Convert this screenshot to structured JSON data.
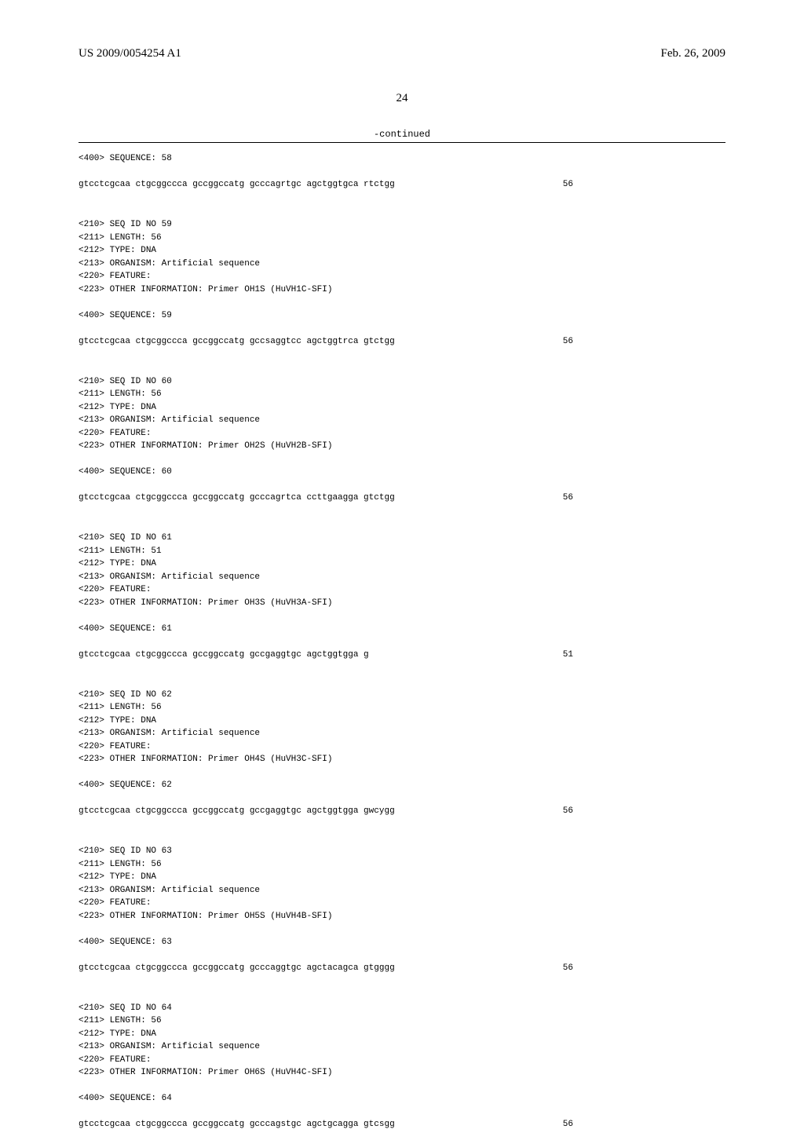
{
  "header": {
    "pub_number": "US 2009/0054254 A1",
    "pub_date": "Feb. 26, 2009"
  },
  "page_number": "24",
  "continued_label": "-continued",
  "entries": [
    {
      "preamble": "<400> SEQUENCE: 58",
      "sequence": "gtcctcgcaa ctgcggccca gccggccatg gcccagrtgc agctggtgca rtctgg",
      "length": "56"
    },
    {
      "meta": [
        "<210> SEQ ID NO 59",
        "<211> LENGTH: 56",
        "<212> TYPE: DNA",
        "<213> ORGANISM: Artificial sequence",
        "<220> FEATURE:",
        "<223> OTHER INFORMATION: Primer OH1S (HuVH1C-SFI)"
      ],
      "preamble": "<400> SEQUENCE: 59",
      "sequence": "gtcctcgcaa ctgcggccca gccggccatg gccsaggtcc agctggtrca gtctgg",
      "length": "56"
    },
    {
      "meta": [
        "<210> SEQ ID NO 60",
        "<211> LENGTH: 56",
        "<212> TYPE: DNA",
        "<213> ORGANISM: Artificial sequence",
        "<220> FEATURE:",
        "<223> OTHER INFORMATION: Primer OH2S (HuVH2B-SFI)"
      ],
      "preamble": "<400> SEQUENCE: 60",
      "sequence": "gtcctcgcaa ctgcggccca gccggccatg gcccagrtca ccttgaagga gtctgg",
      "length": "56"
    },
    {
      "meta": [
        "<210> SEQ ID NO 61",
        "<211> LENGTH: 51",
        "<212> TYPE: DNA",
        "<213> ORGANISM: Artificial sequence",
        "<220> FEATURE:",
        "<223> OTHER INFORMATION: Primer OH3S (HuVH3A-SFI)"
      ],
      "preamble": "<400> SEQUENCE: 61",
      "sequence": "gtcctcgcaa ctgcggccca gccggccatg gccgaggtgc agctggtgga g",
      "length": "51"
    },
    {
      "meta": [
        "<210> SEQ ID NO 62",
        "<211> LENGTH: 56",
        "<212> TYPE: DNA",
        "<213> ORGANISM: Artificial sequence",
        "<220> FEATURE:",
        "<223> OTHER INFORMATION: Primer OH4S (HuVH3C-SFI)"
      ],
      "preamble": "<400> SEQUENCE: 62",
      "sequence": "gtcctcgcaa ctgcggccca gccggccatg gccgaggtgc agctggtgga gwcygg",
      "length": "56"
    },
    {
      "meta": [
        "<210> SEQ ID NO 63",
        "<211> LENGTH: 56",
        "<212> TYPE: DNA",
        "<213> ORGANISM: Artificial sequence",
        "<220> FEATURE:",
        "<223> OTHER INFORMATION: Primer OH5S (HuVH4B-SFI)"
      ],
      "preamble": "<400> SEQUENCE: 63",
      "sequence": "gtcctcgcaa ctgcggccca gccggccatg gcccaggtgc agctacagca gtgggg",
      "length": "56"
    },
    {
      "meta": [
        "<210> SEQ ID NO 64",
        "<211> LENGTH: 56",
        "<212> TYPE: DNA",
        "<213> ORGANISM: Artificial sequence",
        "<220> FEATURE:",
        "<223> OTHER INFORMATION: Primer OH6S (HuVH4C-SFI)"
      ],
      "preamble": "<400> SEQUENCE: 64",
      "sequence": "gtcctcgcaa ctgcggccca gccggccatg gcccagstgc agctgcagga gtcsgg",
      "length": "56"
    }
  ]
}
